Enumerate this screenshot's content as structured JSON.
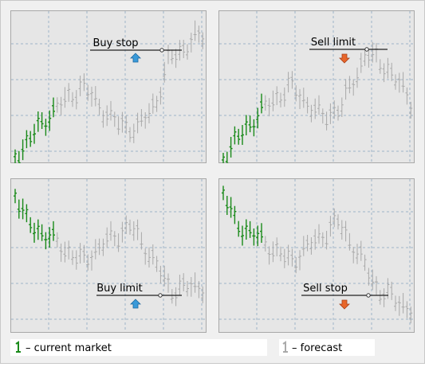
{
  "panels": [
    {
      "label": "Buy stop"
    },
    {
      "label": "Sell limit"
    },
    {
      "label": "Buy limit"
    },
    {
      "label": "Sell stop"
    }
  ],
  "legend": {
    "current": "– current market",
    "forecast": "– forecast"
  }
}
